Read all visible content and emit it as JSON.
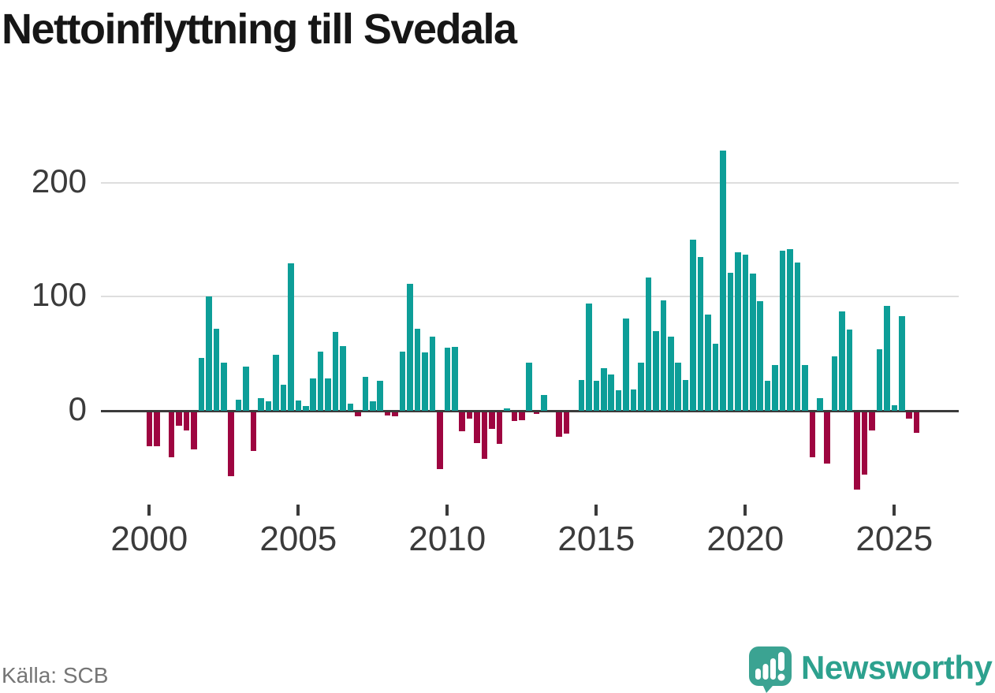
{
  "title": "Nettoinflyttning till Svedala",
  "source": "Källa: SCB",
  "brand": {
    "name": "Newsworthy",
    "icon": "newsworthy-speech-bubble-chart-icon"
  },
  "colors": {
    "positive_bar": "#0d9e98",
    "negative_bar": "#9e0540",
    "grid": "#dedede",
    "axis": "#3b3b3b",
    "title_text": "#161616",
    "source_text": "#757575",
    "brand_teal": "#3ba392"
  },
  "chart_data": {
    "type": "bar",
    "title": "Nettoinflyttning till Svedala",
    "x_unit": "quarter",
    "start": "2000Q1",
    "end": "2025Q4",
    "grid": true,
    "y_ticks": [
      0,
      100,
      200
    ],
    "ylim": [
      -75,
      240
    ],
    "x_tick_labels": [
      "2000",
      "2005",
      "2010",
      "2015",
      "2020",
      "2025"
    ],
    "values": [
      -30,
      -30,
      0,
      -40,
      -12,
      -16,
      -33,
      46,
      100,
      72,
      42,
      -56,
      10,
      39,
      -34,
      11,
      8,
      49,
      23,
      129,
      9,
      4,
      28,
      52,
      28,
      69,
      57,
      6,
      -4,
      30,
      8,
      26,
      -3,
      -4,
      52,
      111,
      72,
      51,
      65,
      -50,
      55,
      56,
      -17,
      -6,
      -27,
      -41,
      -15,
      -28,
      2,
      -8,
      -7,
      42,
      -2,
      14,
      0,
      -22,
      -19,
      0,
      27,
      94,
      26,
      37,
      32,
      18,
      81,
      19,
      42,
      117,
      70,
      97,
      65,
      42,
      27,
      150,
      135,
      84,
      59,
      228,
      121,
      139,
      137,
      120,
      96,
      26,
      40,
      140,
      142,
      130,
      40,
      -40,
      11,
      -45,
      48,
      87,
      71,
      -68,
      -55,
      -16,
      54,
      92,
      5,
      83,
      -6,
      -18
    ]
  }
}
